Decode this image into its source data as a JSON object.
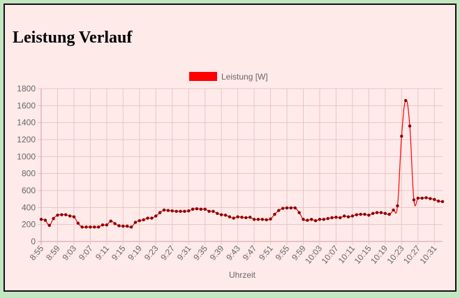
{
  "page": {
    "title": "Leistung Verlauf",
    "background": "#c4e6c1",
    "panel_background": "#ffeaea"
  },
  "chart_data": {
    "type": "line",
    "xlabel": "Uhrzeit",
    "ylabel": "",
    "ylim": [
      0,
      1800
    ],
    "ytick_step": 200,
    "grid": true,
    "legend_position": "top-center",
    "series": [
      {
        "name": "Leistung [W]",
        "color": "#ff0000",
        "point_color": "#8b0000",
        "x": [
          "8:55",
          "8:56",
          "8:57",
          "8:58",
          "8:59",
          "9:00",
          "9:01",
          "9:02",
          "9:03",
          "9:04",
          "9:05",
          "9:06",
          "9:07",
          "9:08",
          "9:09",
          "9:10",
          "9:11",
          "9:12",
          "9:13",
          "9:14",
          "9:15",
          "9:16",
          "9:17",
          "9:18",
          "9:19",
          "9:20",
          "9:21",
          "9:22",
          "9:23",
          "9:24",
          "9:25",
          "9:26",
          "9:27",
          "9:28",
          "9:29",
          "9:30",
          "9:31",
          "9:32",
          "9:33",
          "9:34",
          "9:35",
          "9:36",
          "9:37",
          "9:38",
          "9:39",
          "9:40",
          "9:41",
          "9:42",
          "9:43",
          "9:44",
          "9:45",
          "9:46",
          "9:47",
          "9:48",
          "9:49",
          "9:50",
          "9:51",
          "9:52",
          "9:53",
          "9:54",
          "9:55",
          "9:56",
          "9:57",
          "9:58",
          "9:59",
          "10:00",
          "10:01",
          "10:02",
          "10:03",
          "10:04",
          "10:05",
          "10:06",
          "10:07",
          "10:08",
          "10:09",
          "10:10",
          "10:11",
          "10:12",
          "10:13",
          "10:14",
          "10:15",
          "10:16",
          "10:17",
          "10:18",
          "10:19",
          "10:20",
          "10:21",
          "10:22",
          "10:23",
          "10:24",
          "10:25",
          "10:26",
          "10:27",
          "10:28",
          "10:29",
          "10:30",
          "10:31",
          "10:32",
          "10:33"
        ],
        "values": [
          260,
          250,
          190,
          270,
          310,
          315,
          315,
          300,
          290,
          215,
          170,
          170,
          170,
          170,
          170,
          195,
          195,
          240,
          210,
          185,
          180,
          180,
          170,
          225,
          245,
          255,
          275,
          275,
          300,
          340,
          370,
          365,
          360,
          355,
          355,
          355,
          360,
          380,
          385,
          380,
          380,
          355,
          355,
          330,
          315,
          310,
          290,
          275,
          290,
          285,
          280,
          285,
          260,
          260,
          260,
          255,
          265,
          320,
          365,
          390,
          395,
          395,
          395,
          340,
          260,
          250,
          260,
          245,
          260,
          260,
          270,
          280,
          285,
          280,
          300,
          290,
          300,
          315,
          320,
          320,
          310,
          330,
          340,
          340,
          330,
          320,
          370,
          420,
          1240,
          1660,
          1360,
          490,
          510,
          510,
          515,
          505,
          495,
          475,
          470
        ]
      }
    ],
    "xtick_labels": [
      "8:55",
      "8:59",
      "9:03",
      "9:07",
      "9:11",
      "9:15",
      "9:19",
      "9:23",
      "9:27",
      "9:31",
      "9:35",
      "9:39",
      "9:43",
      "9:47",
      "9:51",
      "9:55",
      "9:59",
      "10:03",
      "10:07",
      "10:11",
      "10:15",
      "10:19",
      "10:23",
      "10:27",
      "10:31"
    ]
  }
}
